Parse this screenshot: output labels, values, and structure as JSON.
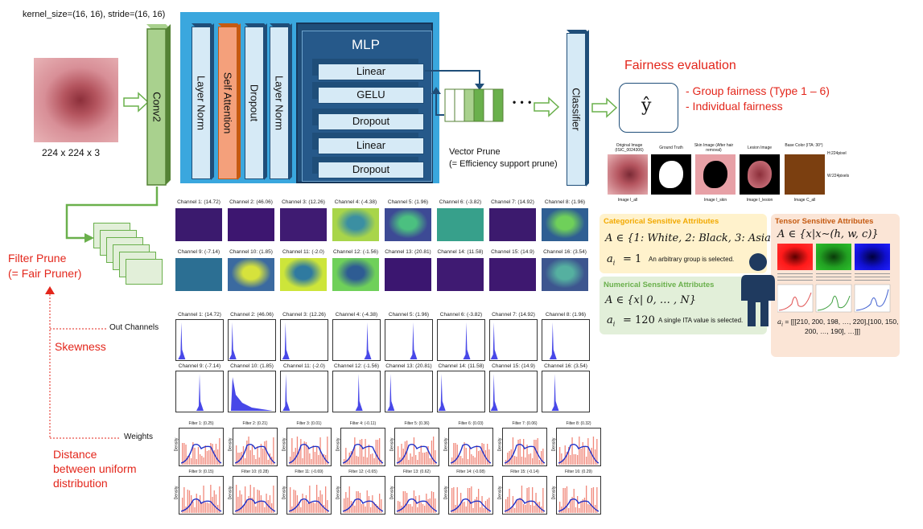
{
  "kernel_label": "kernel_size=(16, 16), stride=(16, 16)",
  "input_size": "224 x 224 x 3",
  "conv2": "Conv2",
  "blocks": {
    "layer_norm_1": "Layer Norm",
    "self_attention": "Self Attention",
    "dropout": "Dropout",
    "layer_norm_2": "Layer Norm"
  },
  "mlp": {
    "title": "MLP",
    "items": [
      "Linear",
      "GELU",
      "Dropout",
      "Linear",
      "Dropout"
    ]
  },
  "vector_prune": {
    "line1": "Vector Prune",
    "line2": "(= Efficiency support prune)"
  },
  "ellipsis": "• • •",
  "classifier": "Classifier",
  "fairness": {
    "title": "Fairness evaluation",
    "yhat": "ŷ",
    "items": [
      "- Group fairness (Type 1 – 6)",
      "- Individual fairness"
    ]
  },
  "images_strip": {
    "labels": [
      "Original Image\n(ISIC_0024306)",
      "Ground Truth",
      "Skin Image\n(After hair removal)",
      "Lesion Image",
      "Base Color\n(ITA: 30°)"
    ],
    "captions": [
      "Image I_all",
      "",
      "Image I_skin",
      "Image I_lesion",
      "Image C_all"
    ],
    "dim_h": "H:224pixel",
    "dim_w": "W:224pixels"
  },
  "filter_prune": {
    "line1": "Filter Prune",
    "line2": "(= Fair Pruner)"
  },
  "skewness": "Skewness",
  "distance": [
    "Distance",
    "between uniform",
    "distribution"
  ],
  "out_channels": "Out Channels",
  "weights": "Weights",
  "channels": [
    "Channel 1: (14.72)",
    "Channel 2: (46.06)",
    "Channel 3: (12.26)",
    "Channel 4: (-4.38)",
    "Channel 5: (1.96)",
    "Channel 6: (-3.82)",
    "Channel 7: (14.92)",
    "Channel 8: (1.96)",
    "Channel 9: (-7.14)",
    "Channel 10: (1.85)",
    "Channel 11: (-2.0)",
    "Channel 12: (-1.56)",
    "Channel 13: (20.81)",
    "Channel 14: (11.58)",
    "Channel 15: (14.9)",
    "Channel 16: (3.54)"
  ],
  "filters": [
    "Filter 1: (0.25)",
    "Filter 2: (0.21)",
    "Filter 3: (0.01)",
    "Filter 4: (-0.11)",
    "Filter 5: (0.36)",
    "Filter 6: (0.03)",
    "Filter 7: (0.06)",
    "Filter 8: (0.32)",
    "Filter 9: (0.15)",
    "Filter 10: (0.28)",
    "Filter 11: (-0.69)",
    "Filter 12: (-0.65)",
    "Filter 13: (0.62)",
    "Filter 14: (-0.08)",
    "Filter 15: (-0.14)",
    "Filter 16: (0.29)"
  ],
  "density_label": "Density",
  "categorical": {
    "title": "Categorical Sensitive Attributes",
    "formula": "A ∈ {1: White, 2: Black, 3: Asian}",
    "ai": "a",
    "ai_value": "= 1",
    "desc": "An arbitrary group is selected."
  },
  "numerical": {
    "title": "Numerical Sensitive Attributes",
    "formula": "A ∈ {x| 0, … , N}",
    "ai": "a",
    "ai_value": "= 120",
    "desc": "A single ITA value is selected."
  },
  "tensor": {
    "title": "Tensor Sensitive Attributes",
    "formula": "A ∈ {x|x∼(h, w, c)}",
    "ai_line1": "= [[[210, 200, 198, …, 220],[100, 150,",
    "ai_line2": "200, …, 190], …]]]"
  },
  "colors": {
    "blue_panel": "#3aa7de",
    "mlp_dark": "#1f4e79",
    "light_blue": "#d6eaf6",
    "attention": "#f4a07b",
    "conv_green": "#6ab04c",
    "red_text": "#e3261b",
    "cat_bg": "#fff2cc",
    "num_bg": "#e2efd9",
    "ten_bg": "#fbe5d6"
  }
}
